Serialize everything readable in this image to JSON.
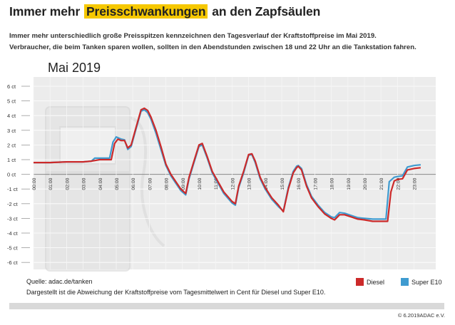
{
  "header": {
    "title_part1": "Immer mehr ",
    "title_highlight": "Preisschwankungen",
    "title_part2": " an den Zapfsäulen",
    "subtitle_line1": "Immer mehr unterschiedlich große Preisspitzen kennzeichnen den Tagesverlauf der Kraftstoffpreise im Mai 2019.",
    "subtitle_line2": "Verbraucher, die beim Tanken sparen wollen, sollten in den Abendstunden zwischen 18 und 22 Uhr an die Tankstation fahren.",
    "highlight_color": "#f6c800"
  },
  "chart_data": {
    "type": "line",
    "title": "Mai 2019",
    "ylim": [
      -6,
      6
    ],
    "yticks": [
      "6 ct",
      "5 ct",
      "4 ct",
      "3 ct",
      "2 ct",
      "1 ct",
      "0 ct",
      "-1 ct",
      "-2 ct",
      "-3 ct",
      "-4 ct",
      "-5 ct",
      "-6 ct"
    ],
    "xticks": [
      "00:00",
      "01:00",
      "02:00",
      "03:00",
      "04:00",
      "05:00",
      "06:00",
      "07:00",
      "08:00",
      "09:00",
      "10:00",
      "11:00",
      "12:00",
      "13:00",
      "14:00",
      "15:00",
      "16:00",
      "17:00",
      "18:00",
      "19:00",
      "20:00",
      "21:00",
      "22:00",
      "23:00"
    ],
    "grid": true,
    "legend_position": "bottom-right",
    "series": [
      {
        "name": "Diesel",
        "color": "#cc2a2a",
        "points": [
          [
            0,
            0.8
          ],
          [
            1,
            0.8
          ],
          [
            2,
            0.85
          ],
          [
            3,
            0.85
          ],
          [
            3.5,
            0.9
          ],
          [
            4,
            1.0
          ],
          [
            4.7,
            1.0
          ],
          [
            4.9,
            2.1
          ],
          [
            5.1,
            2.4
          ],
          [
            5.3,
            2.3
          ],
          [
            5.5,
            2.3
          ],
          [
            5.7,
            1.8
          ],
          [
            5.9,
            2.0
          ],
          [
            6.2,
            3.2
          ],
          [
            6.5,
            4.4
          ],
          [
            6.7,
            4.5
          ],
          [
            6.9,
            4.35
          ],
          [
            7.1,
            3.9
          ],
          [
            7.4,
            3.0
          ],
          [
            7.7,
            1.9
          ],
          [
            8.0,
            0.7
          ],
          [
            8.3,
            0.0
          ],
          [
            8.6,
            -0.5
          ],
          [
            8.9,
            -1.0
          ],
          [
            9.2,
            -1.3
          ],
          [
            9.4,
            -0.2
          ],
          [
            9.7,
            0.9
          ],
          [
            10.0,
            2.0
          ],
          [
            10.2,
            2.1
          ],
          [
            10.5,
            1.2
          ],
          [
            10.8,
            0.2
          ],
          [
            11.1,
            -0.4
          ],
          [
            11.5,
            -1.2
          ],
          [
            12.0,
            -1.85
          ],
          [
            12.2,
            -2.0
          ],
          [
            12.4,
            -0.8
          ],
          [
            12.7,
            0.2
          ],
          [
            13.0,
            1.35
          ],
          [
            13.2,
            1.4
          ],
          [
            13.4,
            0.9
          ],
          [
            13.7,
            -0.2
          ],
          [
            14.0,
            -0.9
          ],
          [
            14.4,
            -1.6
          ],
          [
            14.8,
            -2.1
          ],
          [
            15.1,
            -2.55
          ],
          [
            15.4,
            -1.0
          ],
          [
            15.7,
            0.1
          ],
          [
            15.9,
            0.45
          ],
          [
            16.0,
            0.55
          ],
          [
            16.2,
            0.3
          ],
          [
            16.5,
            -0.8
          ],
          [
            16.8,
            -1.6
          ],
          [
            17.2,
            -2.2
          ],
          [
            17.6,
            -2.7
          ],
          [
            18.0,
            -3.0
          ],
          [
            18.2,
            -3.1
          ],
          [
            18.5,
            -2.75
          ],
          [
            18.8,
            -2.75
          ],
          [
            19.2,
            -2.9
          ],
          [
            19.6,
            -3.05
          ],
          [
            20.0,
            -3.1
          ],
          [
            20.5,
            -3.2
          ],
          [
            21.0,
            -3.2
          ],
          [
            21.4,
            -3.2
          ],
          [
            21.6,
            -1.2
          ],
          [
            21.8,
            -0.45
          ],
          [
            22.0,
            -0.35
          ],
          [
            22.3,
            -0.3
          ],
          [
            22.6,
            0.3
          ],
          [
            23.0,
            0.4
          ],
          [
            23.4,
            0.45
          ]
        ]
      },
      {
        "name": "Super E10",
        "color": "#3f9bd0",
        "points": [
          [
            0,
            0.8
          ],
          [
            1,
            0.8
          ],
          [
            2,
            0.85
          ],
          [
            3,
            0.85
          ],
          [
            3.5,
            0.9
          ],
          [
            3.7,
            1.1
          ],
          [
            4.3,
            1.1
          ],
          [
            4.6,
            1.1
          ],
          [
            4.8,
            2.2
          ],
          [
            5.0,
            2.55
          ],
          [
            5.3,
            2.4
          ],
          [
            5.5,
            2.35
          ],
          [
            5.7,
            1.7
          ],
          [
            5.9,
            1.9
          ],
          [
            6.2,
            3.1
          ],
          [
            6.5,
            4.3
          ],
          [
            6.7,
            4.4
          ],
          [
            6.9,
            4.2
          ],
          [
            7.1,
            3.75
          ],
          [
            7.4,
            2.8
          ],
          [
            7.7,
            1.7
          ],
          [
            8.0,
            0.6
          ],
          [
            8.3,
            -0.1
          ],
          [
            8.6,
            -0.6
          ],
          [
            8.9,
            -1.1
          ],
          [
            9.2,
            -1.4
          ],
          [
            9.4,
            -0.3
          ],
          [
            9.7,
            0.8
          ],
          [
            10.0,
            1.9
          ],
          [
            10.2,
            2.0
          ],
          [
            10.5,
            1.1
          ],
          [
            10.8,
            0.1
          ],
          [
            11.1,
            -0.5
          ],
          [
            11.5,
            -1.3
          ],
          [
            12.0,
            -1.95
          ],
          [
            12.2,
            -2.1
          ],
          [
            12.4,
            -0.9
          ],
          [
            12.7,
            0.1
          ],
          [
            13.0,
            1.3
          ],
          [
            13.2,
            1.35
          ],
          [
            13.4,
            0.8
          ],
          [
            13.7,
            -0.3
          ],
          [
            14.0,
            -1.0
          ],
          [
            14.4,
            -1.7
          ],
          [
            14.8,
            -2.2
          ],
          [
            15.1,
            -2.5
          ],
          [
            15.4,
            -0.9
          ],
          [
            15.7,
            0.2
          ],
          [
            15.9,
            0.55
          ],
          [
            16.0,
            0.6
          ],
          [
            16.2,
            0.4
          ],
          [
            16.5,
            -0.7
          ],
          [
            16.8,
            -1.5
          ],
          [
            17.2,
            -2.1
          ],
          [
            17.6,
            -2.6
          ],
          [
            18.0,
            -2.9
          ],
          [
            18.2,
            -2.95
          ],
          [
            18.5,
            -2.6
          ],
          [
            18.8,
            -2.65
          ],
          [
            19.2,
            -2.8
          ],
          [
            19.6,
            -2.95
          ],
          [
            20.0,
            -3.0
          ],
          [
            20.5,
            -3.05
          ],
          [
            21.0,
            -3.05
          ],
          [
            21.3,
            -3.05
          ],
          [
            21.5,
            -0.5
          ],
          [
            21.8,
            -0.2
          ],
          [
            22.0,
            -0.15
          ],
          [
            22.3,
            -0.1
          ],
          [
            22.6,
            0.5
          ],
          [
            23.0,
            0.6
          ],
          [
            23.4,
            0.65
          ]
        ]
      }
    ]
  },
  "legend": {
    "diesel_label": "Diesel",
    "e10_label": "Super E10"
  },
  "footer": {
    "source": "Quelle: adac.de/tanken",
    "note": "Dargestellt ist die Abweichung der Kraftstoffpreise vom Tagesmittelwert in Cent für Diesel und Super E10.",
    "copyright": "© 6.2019ADAC e.V."
  }
}
